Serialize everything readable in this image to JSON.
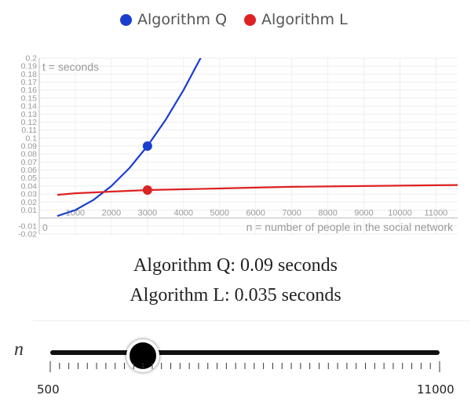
{
  "legend": {
    "items": [
      {
        "label": "Algorithm Q",
        "color": "#1a3fcf"
      },
      {
        "label": "Algorithm L",
        "color": "#dd2222"
      }
    ]
  },
  "chart_data": {
    "type": "line",
    "y_annotation": "t = seconds",
    "x_annotation": "n = number of people in the social network",
    "xlim": [
      0,
      11600
    ],
    "ylim": [
      -0.02,
      0.2
    ],
    "x_ticks": [
      1000,
      2000,
      3000,
      4000,
      5000,
      6000,
      7000,
      8000,
      9000,
      10000,
      11000
    ],
    "x_tick_labels": [
      "1000",
      "2000",
      "3000",
      "4000",
      "5000",
      "6000",
      "7000",
      "8000",
      "9000",
      "10000",
      "11000"
    ],
    "y_ticks": [
      -0.02,
      -0.01,
      0.01,
      0.02,
      0.03,
      0.04,
      0.05,
      0.06,
      0.07,
      0.08,
      0.09,
      0.1,
      0.11,
      0.12,
      0.13,
      0.14,
      0.15,
      0.16,
      0.17,
      0.18,
      0.19,
      0.2
    ],
    "y_tick_labels": [
      "-0.02",
      "-0.01",
      "0.01",
      "0.02",
      "0.03",
      "0.04",
      "0.05",
      "0.06",
      "0.07",
      "0.08",
      "0.09",
      "0.1",
      "0.11",
      "0.12",
      "0.13",
      "0.14",
      "0.15",
      "0.16",
      "0.17",
      "0.18",
      "0.19",
      "0.2"
    ],
    "origin_label": "0",
    "grid": true,
    "series": [
      {
        "name": "Algorithm Q",
        "color": "#1a3fcf",
        "x": [
          500,
          1000,
          1500,
          2000,
          2500,
          3000,
          3500,
          4000,
          4500
        ],
        "y": [
          0.0025,
          0.01,
          0.0225,
          0.04,
          0.0625,
          0.09,
          0.1225,
          0.16,
          0.2025
        ]
      },
      {
        "name": "Algorithm L",
        "color": "#dd2222",
        "x": [
          500,
          1000,
          2000,
          3000,
          4000,
          5000,
          6000,
          7000,
          8000,
          9000,
          10000,
          11000,
          11600
        ],
        "y": [
          0.029,
          0.031,
          0.033,
          0.035,
          0.036,
          0.037,
          0.038,
          0.039,
          0.0395,
          0.04,
          0.0405,
          0.041,
          0.0413
        ]
      }
    ],
    "highlight": {
      "x": 3000,
      "points": [
        {
          "series": "Algorithm Q",
          "y": 0.09
        },
        {
          "series": "Algorithm L",
          "y": 0.035
        }
      ]
    }
  },
  "readout": {
    "q_text": "Algorithm Q: 0.09 seconds",
    "l_text": "Algorithm L: 0.035 seconds"
  },
  "slider": {
    "variable": "n",
    "min": 500,
    "max": 11000,
    "value": 3000,
    "min_label": "500",
    "max_label": "11000"
  }
}
